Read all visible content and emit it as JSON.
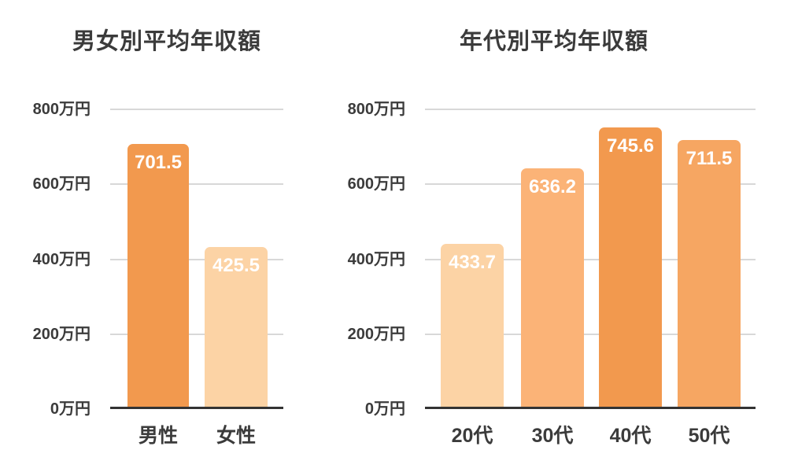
{
  "page": {
    "background": "#ffffff"
  },
  "colors": {
    "text": "#3b3b3b",
    "gridline": "#d8d8d8",
    "axis": "#333333",
    "value_label": "#ffffff",
    "orange_strong": "#F2994E",
    "orange_medium": "#F6A662",
    "orange_light": "#FBB377",
    "peach": "#FCD3A5"
  },
  "chart_data": [
    {
      "type": "bar",
      "title": "男女別平均年収額",
      "categories": [
        "男性",
        "女性"
      ],
      "values": [
        701.5,
        425.5
      ],
      "value_labels": [
        "701.5",
        "425.5"
      ],
      "bar_colors": [
        "#F2994E",
        "#FCD3A5"
      ],
      "ylabel": "",
      "xlabel": "",
      "unit": "万円",
      "ylim": [
        0,
        800
      ],
      "ytick_values": [
        0,
        200,
        400,
        600,
        800
      ],
      "ytick_labels": [
        "0万円",
        "200万円",
        "400万円",
        "600万円",
        "800万円"
      ],
      "grid": true,
      "legend_position": "none"
    },
    {
      "type": "bar",
      "title": "年代別平均年収額",
      "categories": [
        "20代",
        "30代",
        "40代",
        "50代"
      ],
      "values": [
        433.7,
        636.2,
        745.6,
        711.5
      ],
      "value_labels": [
        "433.7",
        "636.2",
        "745.6",
        "711.5"
      ],
      "bar_colors": [
        "#FCD3A5",
        "#FBB377",
        "#F2994E",
        "#F6A662"
      ],
      "ylabel": "",
      "xlabel": "",
      "unit": "万円",
      "ylim": [
        0,
        800
      ],
      "ytick_values": [
        0,
        200,
        400,
        600,
        800
      ],
      "ytick_labels": [
        "0万円",
        "200万円",
        "400万円",
        "600万円",
        "800万円"
      ],
      "grid": true,
      "legend_position": "none"
    }
  ]
}
